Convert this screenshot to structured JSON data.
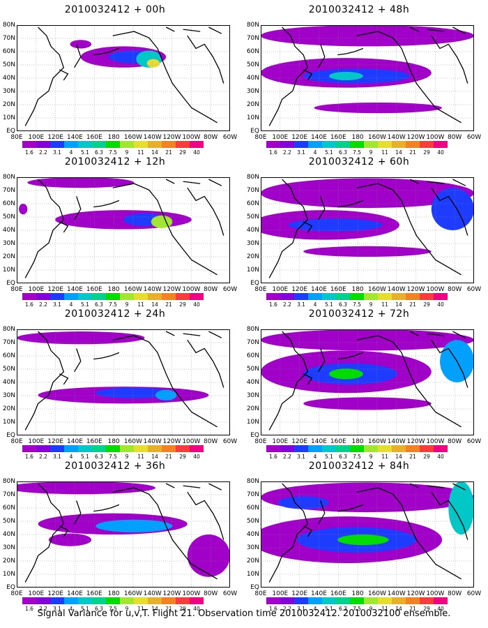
{
  "caption": "Signal Variance for u,v,T. Flight 21. Observation time 2010032412. 2010032100 ensemble.",
  "lat_labels": [
    "80N",
    "70N",
    "60N",
    "50N",
    "40N",
    "30N",
    "20N",
    "10N",
    "EQ"
  ],
  "lat_labels_display": [
    "80N",
    "70N",
    "60N",
    "50N",
    "40N",
    "30N",
    "20N",
    "10N",
    "EQ"
  ],
  "lon_labels": [
    "80E",
    "100E",
    "120E",
    "140E",
    "160E",
    "180",
    "160W",
    "140W",
    "120W",
    "100W",
    "80W",
    "60W"
  ],
  "colorbar": {
    "ticks": [
      "1.6",
      "2.2",
      "3.1",
      "4",
      "5.1",
      "6.3",
      "7.5",
      "9",
      "11",
      "14",
      "21",
      "29",
      "40"
    ],
    "colors": [
      "#a000c8",
      "#8200dc",
      "#1e3cff",
      "#00a0ff",
      "#00c8c8",
      "#00d28c",
      "#00dc00",
      "#a0e632",
      "#e6dc32",
      "#e6af2d",
      "#f08228",
      "#fa3c3c",
      "#f00082"
    ]
  },
  "panels": [
    {
      "title": "2010032412 + 00h",
      "col": 0,
      "row": 0
    },
    {
      "title": "2010032412 + 12h",
      "col": 0,
      "row": 1
    },
    {
      "title": "2010032412 + 24h",
      "col": 0,
      "row": 2
    },
    {
      "title": "2010032412 + 36h",
      "col": 0,
      "row": 3
    },
    {
      "title": "2010032412 + 48h",
      "col": 1,
      "row": 0
    },
    {
      "title": "2010032412 + 60h",
      "col": 1,
      "row": 1
    },
    {
      "title": "2010032412 + 72h",
      "col": 1,
      "row": 2
    },
    {
      "title": "2010032412 + 84h",
      "col": 1,
      "row": 3
    }
  ]
}
